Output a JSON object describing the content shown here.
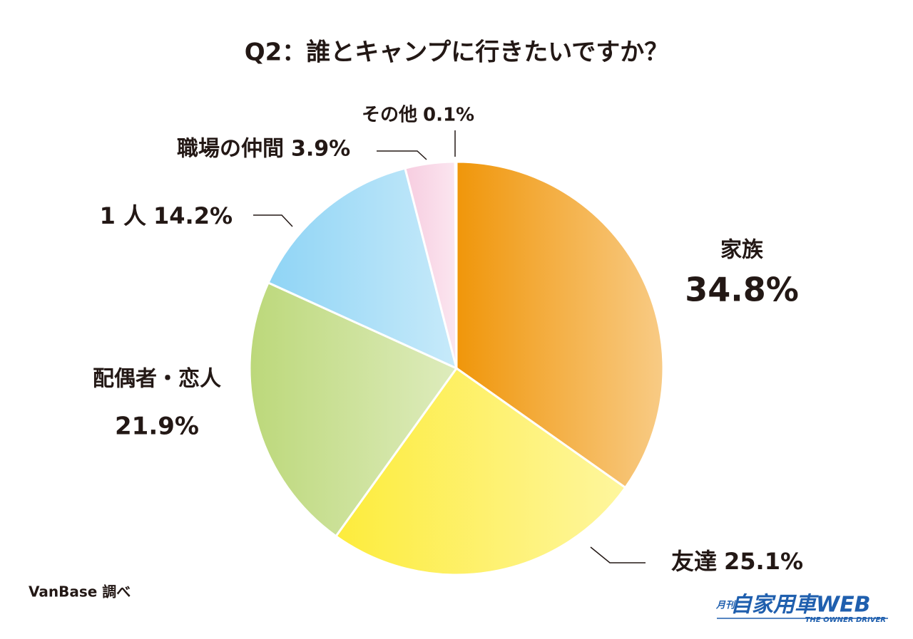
{
  "chart_data": {
    "type": "pie",
    "title": "Q2：誰とキャンプに行きたいですか？",
    "categories": [
      "家族",
      "友達",
      "配偶者・恋人",
      "1 人",
      "職場の仲間",
      "その他"
    ],
    "values": [
      34.8,
      25.1,
      21.9,
      14.2,
      3.9,
      0.1
    ],
    "value_labels": [
      "34.8%",
      "25.1%",
      "21.9%",
      "14.2%",
      "3.9%",
      "0.1%"
    ],
    "colors": [
      "#f0960a",
      "#fdec3c",
      "#bcd87a",
      "#8fd4f5",
      "#f7cde0",
      "#a99cc8"
    ]
  },
  "source": "VanBase 調べ",
  "logo": {
    "prefix": "月刊",
    "name": "自家用車WEB",
    "tagline": "THE OWNER DRIVER"
  }
}
